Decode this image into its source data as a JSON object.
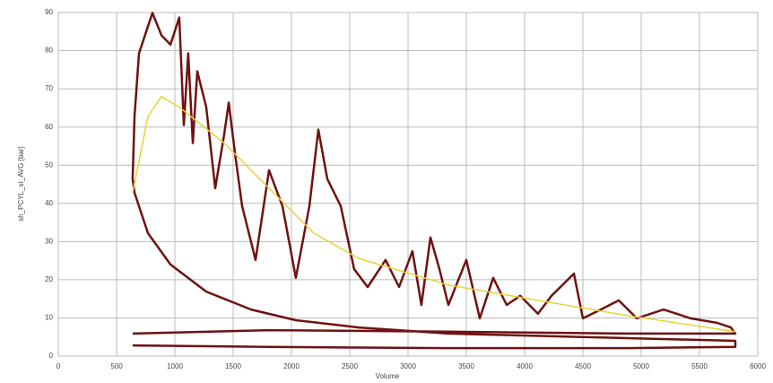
{
  "chart_data": {
    "type": "line",
    "xlabel": "Volume",
    "ylabel": "sh_PCYL_st_AVG [bar]",
    "xlim": [
      0,
      6000
    ],
    "xticks": [
      0,
      500,
      1000,
      1500,
      2000,
      2500,
      3000,
      3500,
      4000,
      4500,
      5000,
      5500,
      6000
    ],
    "ylim": [
      0,
      90
    ],
    "yticks": [
      0,
      10,
      20,
      30,
      40,
      50,
      60,
      70,
      80,
      90
    ],
    "grid": true,
    "series": [
      {
        "color": "#6e1212",
        "x": [
          638,
          1808,
          3346,
          4885,
          5808,
          5808,
          4885,
          3346,
          2577,
          2038,
          1654,
          1269,
          962,
          769,
          654,
          638,
          654,
          692,
          769,
          808,
          885,
          962,
          1038,
          1077,
          1115,
          1154,
          1192,
          1269,
          1346,
          1423,
          1462,
          1515,
          1577,
          1692,
          1808,
          1923,
          2038,
          2154,
          2231,
          2308,
          2423,
          2538,
          2654,
          2808,
          2923,
          3038,
          3115,
          3192,
          3269,
          3346,
          3500,
          3615,
          3731,
          3846,
          3962,
          4115,
          4231,
          4423,
          4500,
          4654,
          4808,
          4962,
          5192,
          5423,
          5654,
          5769,
          5808,
          4885,
          3346,
          1808,
          638
        ],
        "values": [
          2.8,
          2.4,
          2.1,
          2.1,
          2.4,
          4,
          4.7,
          5.9,
          7.5,
          9.4,
          12.2,
          16.9,
          24,
          32.2,
          42.8,
          46.4,
          62.8,
          79.3,
          86.4,
          89.9,
          84,
          81.6,
          88.7,
          60.5,
          79.3,
          55.8,
          74.6,
          65.2,
          44,
          58.1,
          66.4,
          53.4,
          39.3,
          25.2,
          48.7,
          39.3,
          20.5,
          39.3,
          59.3,
          46.4,
          39.3,
          22.8,
          18.1,
          25.2,
          18.1,
          27.5,
          13.4,
          31.1,
          22.8,
          13.4,
          25.2,
          9.9,
          20.5,
          13.4,
          15.8,
          11.1,
          15.8,
          21.6,
          9.9,
          12.2,
          14.6,
          9.9,
          12.2,
          9.9,
          8.7,
          7.5,
          5.9,
          5.9,
          6.4,
          6.8,
          5.9
        ]
      },
      {
        "color": "#e8d23a",
        "x": [
          638,
          769,
          885,
          1038,
          1423,
          1808,
          2192,
          2577,
          3346,
          4115,
          4885,
          5808
        ],
        "values": [
          42.8,
          62.8,
          68,
          65.2,
          55.8,
          44,
          32.2,
          25.6,
          18.6,
          14.6,
          10.6,
          6.4
        ]
      }
    ]
  }
}
